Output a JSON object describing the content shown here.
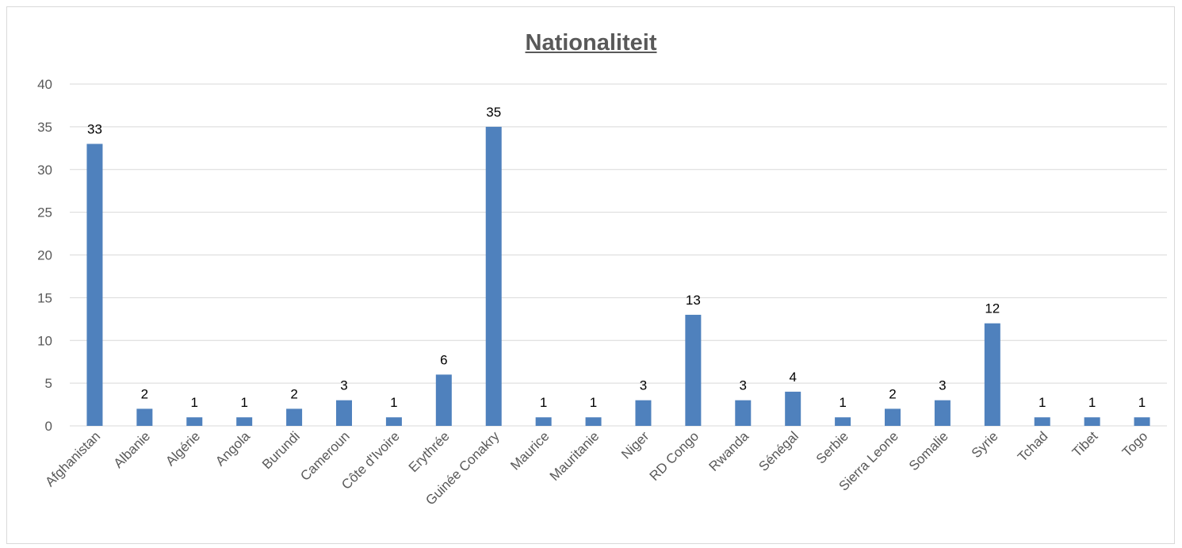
{
  "chart_data": {
    "type": "bar",
    "title": "Nationaliteit",
    "xlabel": "",
    "ylabel": "",
    "ylim": [
      0,
      40
    ],
    "yticks": [
      "0",
      "5",
      "10",
      "15",
      "20",
      "25",
      "30",
      "35",
      "40"
    ],
    "categories": [
      "Afghanistan",
      "Albanie",
      "Algérie",
      "Angola",
      "Burundi",
      "Cameroun",
      "Côte d'Ivoire",
      "Erythrée",
      "Guinée Conakry",
      "Maurice",
      "Mauritanie",
      "Niger",
      "RD Congo",
      "Rwanda",
      "Sénégal",
      "Serbie",
      "Sierra Leone",
      "Somalie",
      "Syrie",
      "Tchad",
      "Tibet",
      "Togo"
    ],
    "values": [
      33,
      2,
      1,
      1,
      2,
      3,
      1,
      6,
      35,
      1,
      1,
      3,
      13,
      3,
      4,
      1,
      2,
      3,
      12,
      1,
      1,
      1
    ],
    "grid": true,
    "legend": "none",
    "colors": {
      "bar": "#4f81bd",
      "grid": "#d9d9d9",
      "text": "#595959"
    }
  }
}
